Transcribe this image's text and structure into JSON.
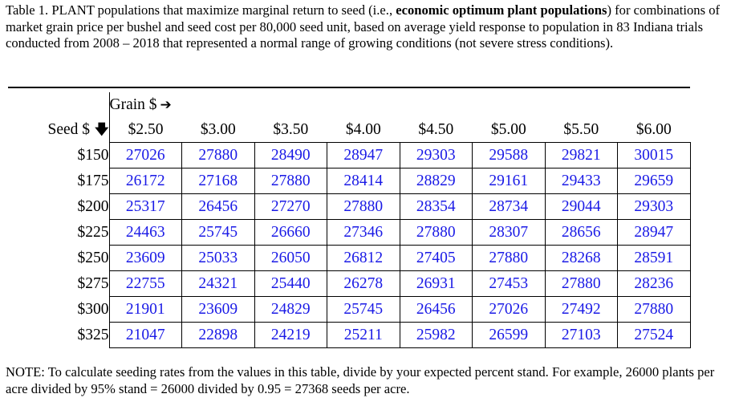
{
  "caption": {
    "part1": "Table 1. PLANT populations that maximize marginal return to seed (i.e., ",
    "bold": "economic optimum plant populations",
    "part2": ") for combinations of market grain price per bushel and seed cost per 80,000 seed unit, based on average yield response to population in 83 Indiana trials conducted from 2008 – 2018 that represented a normal range of growing conditions (not severe stress conditions)."
  },
  "table": {
    "grain_label": "Grain $",
    "seed_label": "Seed $",
    "arrow_right_icon": "➔",
    "arrow_down_icon": "🡇",
    "grain_prices": [
      "$2.50",
      "$3.00",
      "$3.50",
      "$4.00",
      "$4.50",
      "$5.00",
      "$5.50",
      "$6.00"
    ],
    "rows": [
      {
        "seed": "$150",
        "values": [
          "27026",
          "27880",
          "28490",
          "28947",
          "29303",
          "29588",
          "29821",
          "30015"
        ]
      },
      {
        "seed": "$175",
        "values": [
          "26172",
          "27168",
          "27880",
          "28414",
          "28829",
          "29161",
          "29433",
          "29659"
        ]
      },
      {
        "seed": "$200",
        "values": [
          "25317",
          "26456",
          "27270",
          "27880",
          "28354",
          "28734",
          "29044",
          "29303"
        ]
      },
      {
        "seed": "$225",
        "values": [
          "24463",
          "25745",
          "26660",
          "27346",
          "27880",
          "28307",
          "28656",
          "28947"
        ]
      },
      {
        "seed": "$250",
        "values": [
          "23609",
          "25033",
          "26050",
          "26812",
          "27405",
          "27880",
          "28268",
          "28591"
        ]
      },
      {
        "seed": "$275",
        "values": [
          "22755",
          "24321",
          "25440",
          "26278",
          "26931",
          "27453",
          "27880",
          "28236"
        ]
      },
      {
        "seed": "$300",
        "values": [
          "21901",
          "23609",
          "24829",
          "25745",
          "26456",
          "27026",
          "27492",
          "27880"
        ]
      },
      {
        "seed": "$325",
        "values": [
          "21047",
          "22898",
          "24219",
          "25211",
          "25982",
          "26599",
          "27103",
          "27524"
        ]
      }
    ]
  },
  "note": "NOTE: To calculate seeding rates from the values in this table, divide by your expected percent stand. For example, 26000 plants per acre divided by 95% stand = 26000 divided by 0.95 = 27368 seeds per acre.",
  "colors": {
    "value_text": "#1a1ae6",
    "text": "#000000"
  }
}
